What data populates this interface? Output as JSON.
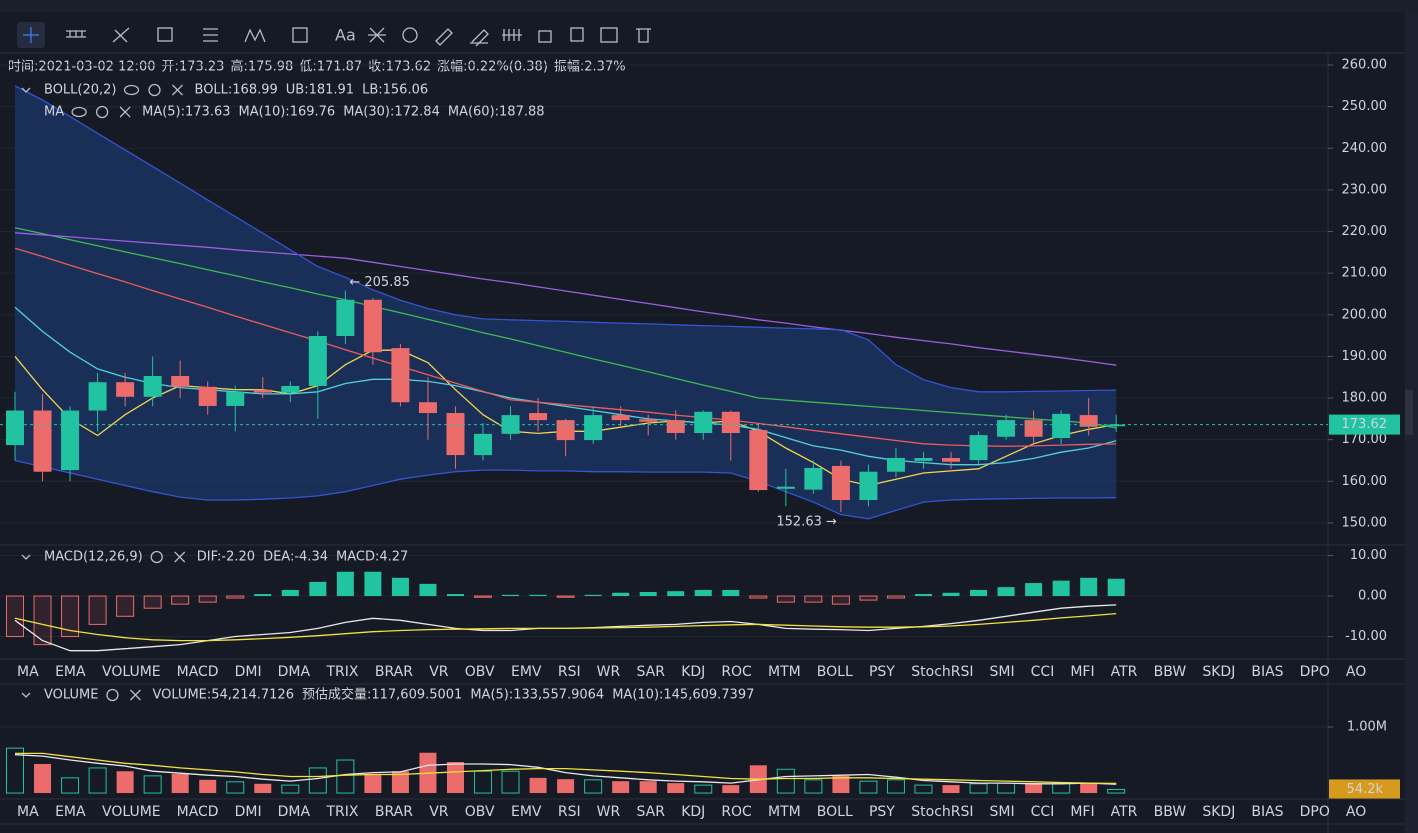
{
  "toolbar": {
    "text_tool": "Aa"
  },
  "info": [
    {
      "label": "时间:",
      "value": "2021-03-02 12:00",
      "color": "#d1d4dc"
    },
    {
      "label": "开:",
      "value": "173.23",
      "color": "#26c6a0"
    },
    {
      "label": "高:",
      "value": "175.98",
      "color": "#26c6a0"
    },
    {
      "label": "低:",
      "value": "171.87",
      "color": "#26c6a0"
    },
    {
      "label": "收:",
      "value": "173.62",
      "color": "#26c6a0"
    },
    {
      "label": "涨幅:",
      "value": "0.22%(0.38)",
      "color": "#26c6a0"
    },
    {
      "label": "振幅:",
      "value": "2.37%",
      "color": "#26c6a0"
    }
  ],
  "tabs_1": [
    {
      "label": "MA"
    },
    {
      "label": "EMA"
    },
    {
      "label": "VOLUME",
      "color": "#7d8290"
    },
    {
      "label": "MACD",
      "color": "#3d7cf0"
    },
    {
      "label": "DMI"
    },
    {
      "label": "DMA"
    },
    {
      "label": "TRIX"
    },
    {
      "label": "BRAR"
    },
    {
      "label": "VR"
    },
    {
      "label": "OBV"
    },
    {
      "label": "EMV"
    },
    {
      "label": "RSI"
    },
    {
      "label": "WR"
    },
    {
      "label": "SAR"
    },
    {
      "label": "KDJ"
    },
    {
      "label": "ROC"
    },
    {
      "label": "MTM"
    },
    {
      "label": "BOLL"
    },
    {
      "label": "PSY"
    },
    {
      "label": "StochRSI"
    },
    {
      "label": "SMI"
    },
    {
      "label": "CCI"
    },
    {
      "label": "MFI"
    },
    {
      "label": "ATR"
    },
    {
      "label": "BBW"
    },
    {
      "label": "SKDJ"
    },
    {
      "label": "BIAS"
    },
    {
      "label": "DPO"
    },
    {
      "label": "AO"
    }
  ],
  "tabs_2": [
    {
      "label": "MA"
    },
    {
      "label": "EMA"
    },
    {
      "label": "VOLUME",
      "color": "#3d7cf0"
    },
    {
      "label": "MACD",
      "color": "#7d8290"
    },
    {
      "label": "DMI"
    },
    {
      "label": "DMA"
    },
    {
      "label": "TRIX"
    },
    {
      "label": "BRAR"
    },
    {
      "label": "VR"
    },
    {
      "label": "OBV"
    },
    {
      "label": "EMV"
    },
    {
      "label": "RSI"
    },
    {
      "label": "WR"
    },
    {
      "label": "SAR"
    },
    {
      "label": "KDJ"
    },
    {
      "label": "ROC"
    },
    {
      "label": "MTM"
    },
    {
      "label": "BOLL"
    },
    {
      "label": "PSY"
    },
    {
      "label": "StochRSI"
    },
    {
      "label": "SMI"
    },
    {
      "label": "CCI"
    },
    {
      "label": "MFI"
    },
    {
      "label": "ATR"
    },
    {
      "label": "BBW"
    },
    {
      "label": "SKDJ"
    },
    {
      "label": "BIAS"
    },
    {
      "label": "DPO"
    },
    {
      "label": "AO"
    }
  ],
  "chart_data": [
    {
      "type": "candlestick",
      "legend_title": "BOLL(20,2)",
      "legend_title_2": "MA",
      "up_color": "#22c3a0",
      "down_color": "#ec6b6b",
      "band_color": "#1c3768",
      "open": [
        168.7,
        177,
        162.7,
        177,
        183.8,
        180.3,
        185.3,
        182.7,
        178.1,
        182,
        181.3,
        182.9,
        194.9,
        203.6,
        192,
        179,
        176.4,
        166.3,
        171.4,
        176.4,
        174.7,
        169.9,
        175.9,
        174.9,
        174.7,
        171.6,
        176.7,
        172.3,
        158.2,
        158,
        163.7,
        155.5,
        162.3,
        164.9,
        165.6,
        165.1,
        170.7,
        174.7,
        170.4,
        175.9,
        173.23
      ],
      "high": [
        181.5,
        181,
        178,
        186,
        186,
        190,
        189,
        184,
        183,
        185,
        184,
        196,
        205.85,
        204,
        193,
        185,
        178,
        174,
        178,
        180,
        175,
        178,
        178,
        176,
        177,
        177,
        177,
        174,
        163,
        165,
        165,
        164,
        168,
        167,
        167,
        172,
        176,
        177,
        177,
        180,
        175.98
      ],
      "low": [
        165,
        160,
        160,
        172,
        178,
        178,
        180,
        176,
        172,
        180,
        179,
        175,
        193,
        188,
        178,
        170,
        163,
        165,
        170,
        172,
        166,
        169,
        173,
        171,
        170,
        170,
        165,
        157.5,
        154,
        157,
        152.63,
        154,
        161,
        163,
        163,
        164,
        170,
        169,
        169,
        171,
        171.87
      ],
      "close": [
        177,
        162.3,
        177,
        183.8,
        180.3,
        185.3,
        182.7,
        178.1,
        181.5,
        181.3,
        182.9,
        194.9,
        203.6,
        191,
        179,
        176.4,
        166.3,
        171.4,
        175.9,
        174.7,
        169.9,
        175.9,
        174.7,
        174.3,
        171.6,
        176.7,
        171.6,
        157.9,
        158.7,
        163.2,
        155.5,
        162.3,
        165.6,
        165.6,
        164.7,
        171.1,
        174.7,
        170.7,
        176.2,
        173.1,
        173.62
      ],
      "series": [
        {
          "name": "MA(5):173.63",
          "color": "#f2d64b",
          "legend_row": 2,
          "values": [
            190,
            182,
            175,
            171,
            176,
            180,
            183,
            182.5,
            182,
            182,
            181,
            183,
            188,
            191.5,
            191.5,
            188.5,
            182,
            176,
            172,
            171.5,
            172,
            172,
            173,
            174,
            174.5,
            174,
            174.5,
            172,
            168,
            164.5,
            160.5,
            159,
            160.5,
            162,
            162.5,
            163,
            166,
            169,
            171,
            172.5,
            173.63
          ]
        },
        {
          "name": "MA(10):169.76",
          "color": "#4fd1d9",
          "legend_row": 2,
          "values": [
            201.8,
            196,
            191,
            187,
            185,
            183.5,
            182.5,
            182,
            181.5,
            181,
            181,
            181.5,
            183.5,
            184.5,
            184.5,
            184,
            183,
            181.5,
            180,
            179,
            178,
            177,
            176,
            175,
            174.5,
            174,
            173.5,
            172.5,
            170.5,
            168.5,
            167.5,
            166,
            165,
            164.5,
            164,
            164,
            164.5,
            165.5,
            167,
            168,
            169.76
          ]
        },
        {
          "name": "MA(30):172.84",
          "color": "#3fb950",
          "legend_row": 2,
          "values": [
            220.9,
            219.5,
            218,
            216.6,
            215.1,
            213.7,
            212.3,
            210.8,
            209.4,
            207.9,
            206.5,
            205,
            203.6,
            202,
            200.5,
            198.9,
            197.3,
            195.7,
            194.2,
            192.6,
            191,
            189.4,
            187.9,
            186.3,
            184.7,
            183.1,
            181.6,
            180,
            179.5,
            179,
            178.5,
            178,
            177.5,
            177,
            176.5,
            176,
            175.5,
            175,
            174.5,
            174,
            172.84
          ]
        },
        {
          "name": "MA(60):187.88",
          "color": "#9c5de0",
          "legend_row": 2,
          "values": [
            219.7,
            219.2,
            218.7,
            218.2,
            217.7,
            217.2,
            216.7,
            216.2,
            215.6,
            215.1,
            214.6,
            214.1,
            213.6,
            212.6,
            211.6,
            210.6,
            209.6,
            208.6,
            207.7,
            206.7,
            205.7,
            204.7,
            203.7,
            202.7,
            201.7,
            200.7,
            199.8,
            198.8,
            198,
            197.1,
            196.3,
            195.5,
            194.6,
            193.8,
            193,
            192.1,
            191.3,
            190.5,
            189.7,
            188.8,
            187.88
          ]
        },
        {
          "name": "BOLL:168.99",
          "color": "#ec5b5b",
          "legend_row": 1,
          "values": [
            216,
            214,
            211.9,
            209.9,
            207.9,
            205.8,
            203.8,
            201.8,
            199.7,
            197.7,
            195.7,
            193.7,
            191.6,
            189.6,
            187.6,
            185.6,
            183.6,
            181.6,
            179.6,
            179,
            178.4,
            177.8,
            177.2,
            176.6,
            175.9,
            175.3,
            174.7,
            173.9,
            173.1,
            172.2,
            171.4,
            170.6,
            169.8,
            169,
            168.7,
            168.5,
            168.4,
            168.5,
            168.7,
            168.9,
            168.99
          ]
        },
        {
          "name": "UB:181.91",
          "color": "#3454d1",
          "legend_row": 1,
          "values": [
            255,
            251.6,
            247.6,
            243.6,
            239.6,
            235.6,
            231.6,
            227.6,
            223.6,
            219.6,
            215.6,
            211.6,
            209,
            206,
            203.5,
            201.5,
            200,
            199,
            198.8,
            198.6,
            198.4,
            198.2,
            198,
            197.8,
            197.6,
            197.4,
            197.2,
            197,
            196.8,
            196.6,
            196.4,
            194,
            188,
            184.4,
            182.5,
            181.5,
            181.5,
            181.6,
            181.7,
            181.8,
            181.91
          ]
        },
        {
          "name": "LB:156.06",
          "color": "#3454d1",
          "legend_row": 1,
          "values": [
            165,
            163.5,
            162,
            160.5,
            159,
            157.5,
            156.2,
            155.5,
            155.5,
            155.7,
            156,
            156.5,
            157.5,
            159,
            160.5,
            161.5,
            162.3,
            162.7,
            162.7,
            162.5,
            162.5,
            162.3,
            162.3,
            162.2,
            162.2,
            162.2,
            162,
            160,
            157.5,
            155,
            152,
            151,
            153,
            155,
            155.5,
            155.7,
            155.8,
            155.9,
            156,
            156,
            156.06
          ]
        }
      ],
      "ylim": [
        144.7,
        262.4
      ],
      "yticks": [
        {
          "value": 150,
          "label": "150.00"
        },
        {
          "value": 160,
          "label": "160.00"
        },
        {
          "value": 170,
          "label": "170.00"
        },
        {
          "value": 180,
          "label": "180.00"
        },
        {
          "value": 190,
          "label": "190.00"
        },
        {
          "value": 200,
          "label": "200.00"
        },
        {
          "value": 210,
          "label": "210.00"
        },
        {
          "value": 220,
          "label": "220.00"
        },
        {
          "value": 230,
          "label": "230.00"
        },
        {
          "value": 240,
          "label": "240.00"
        },
        {
          "value": 250,
          "label": "250.00"
        },
        {
          "value": 260,
          "label": "260.00"
        }
      ],
      "last_label": "173.62",
      "annotations": [
        {
          "value": 205.85,
          "label": "← 205.85"
        },
        {
          "value": 152.63,
          "label": "152.63 →"
        }
      ]
    },
    {
      "type": "bar",
      "legend_title": "MACD(12,26,9)",
      "value_name": "MACD:4.27",
      "up_color": "#22c3a0",
      "down_color": "#ec6b6b",
      "values": [
        -10,
        -12,
        -10,
        -7,
        -5,
        -3,
        -2,
        -1.5,
        -0.5,
        0.5,
        1.5,
        3.5,
        6,
        6,
        4.5,
        3,
        0.5,
        -0.3,
        0.3,
        0.3,
        -0.3,
        0.3,
        0.8,
        1,
        1.2,
        1.5,
        1.5,
        -0.5,
        -1.5,
        -1.5,
        -2,
        -1,
        -0.5,
        0.5,
        0.8,
        1.5,
        2.2,
        3.2,
        3.8,
        4.5,
        4.27
      ],
      "series": [
        {
          "name": "DIF:-2.20",
          "color": "#e8e8e8",
          "values": [
            -6,
            -11,
            -13.5,
            -13.5,
            -13,
            -12.5,
            -12,
            -11,
            -10,
            -9.5,
            -9,
            -8,
            -6.5,
            -5.5,
            -6,
            -7,
            -8,
            -8.5,
            -8.5,
            -8,
            -8,
            -7.8,
            -7.5,
            -7.2,
            -7,
            -6.5,
            -6.3,
            -7,
            -8,
            -8.2,
            -8.3,
            -8.5,
            -8,
            -7.5,
            -6.8,
            -6,
            -5,
            -4,
            -3,
            -2.5,
            -2.2
          ]
        },
        {
          "name": "DEA:-4.34",
          "color": "#f2e23b",
          "values": [
            -5.5,
            -7,
            -8.5,
            -9.5,
            -10.3,
            -10.8,
            -11,
            -11,
            -10.8,
            -10.5,
            -10.2,
            -9.8,
            -9.3,
            -8.8,
            -8.5,
            -8.3,
            -8.2,
            -8.1,
            -8,
            -8,
            -8,
            -7.9,
            -7.8,
            -7.7,
            -7.5,
            -7.3,
            -7.1,
            -7,
            -7.2,
            -7.4,
            -7.6,
            -7.7,
            -7.7,
            -7.6,
            -7.4,
            -7,
            -6.5,
            -6,
            -5.4,
            -4.9,
            -4.34
          ]
        }
      ],
      "ylim": [
        -15.3,
        12.6
      ],
      "yticks": [
        {
          "value": -10,
          "label": "-10.00"
        },
        {
          "value": 0,
          "label": "0.00"
        },
        {
          "value": 10,
          "label": "10.00"
        }
      ]
    },
    {
      "type": "volume",
      "legend_title": "VOLUME",
      "value_name": "VOLUME:54,214.7126",
      "estimate": "预估成交量:117,609.5001",
      "up_color": "#22c3a0",
      "down_color": "#ec6b6b",
      "last_color": "#d89a1c",
      "values": [
        680000,
        440000,
        230000,
        380000,
        330000,
        260000,
        290000,
        200000,
        170000,
        140000,
        120000,
        380000,
        500000,
        290000,
        330000,
        610000,
        470000,
        330000,
        330000,
        230000,
        210000,
        200000,
        180000,
        180000,
        150000,
        120000,
        120000,
        420000,
        360000,
        200000,
        260000,
        180000,
        200000,
        120000,
        120000,
        140000,
        150000,
        150000,
        150000,
        150000,
        54214.7126
      ],
      "series": [
        {
          "name": "MA(5):133,557.9064",
          "color": "#e8e8e8",
          "values": [
            580000,
            560000,
            500000,
            450000,
            410000,
            330000,
            300000,
            270000,
            250000,
            210000,
            180000,
            220000,
            280000,
            310000,
            320000,
            420000,
            440000,
            440000,
            430000,
            390000,
            310000,
            260000,
            230000,
            200000,
            180000,
            170000,
            150000,
            200000,
            250000,
            260000,
            270000,
            280000,
            240000,
            190000,
            170000,
            150000,
            150000,
            140000,
            140000,
            150000,
            133557.9064
          ]
        },
        {
          "name": "MA(10):145,609.7397",
          "color": "#f2e23b",
          "values": [
            600000,
            600000,
            550000,
            500000,
            450000,
            420000,
            380000,
            350000,
            320000,
            280000,
            250000,
            250000,
            270000,
            280000,
            280000,
            300000,
            320000,
            340000,
            360000,
            370000,
            370000,
            350000,
            330000,
            310000,
            280000,
            250000,
            220000,
            210000,
            220000,
            220000,
            230000,
            230000,
            220000,
            210000,
            200000,
            190000,
            180000,
            170000,
            160000,
            150000,
            145609.7397
          ]
        }
      ],
      "ylim": [
        -60000,
        1333000
      ],
      "yticks": [
        {
          "value": 1000000,
          "label": "1.00M"
        }
      ],
      "last_label": "54.2k"
    }
  ]
}
